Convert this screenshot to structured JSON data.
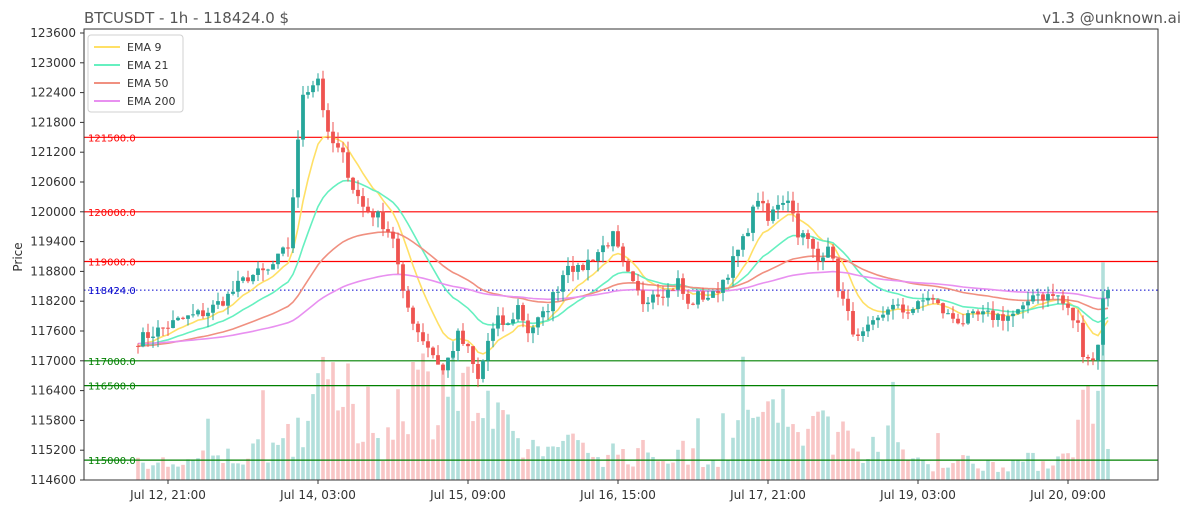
{
  "header": {
    "title": "BTCUSDT - 1h - 118424.0 $",
    "watermark": "v1.3 @unknown.ai"
  },
  "chart_data": {
    "type": "candlestick",
    "symbol": "BTCUSDT",
    "interval": "1h",
    "last_price": 118424.0,
    "ylabel": "Price",
    "ylim": [
      114600,
      123800
    ],
    "y_ticks": [
      {
        "value": 123600,
        "label": "123600"
      },
      {
        "value": 123000,
        "label": "123000"
      },
      {
        "value": 122400,
        "label": "122400"
      },
      {
        "value": 121800,
        "label": "121800"
      },
      {
        "value": 121200,
        "label": "121200"
      },
      {
        "value": 120600,
        "label": "120600"
      },
      {
        "value": 120000,
        "label": "120000"
      },
      {
        "value": 119400,
        "label": "119400"
      },
      {
        "value": 118800,
        "label": "118800"
      },
      {
        "value": 118200,
        "label": "118200"
      },
      {
        "value": 117600,
        "label": "117600"
      },
      {
        "value": 117000,
        "label": "117000"
      },
      {
        "value": 116400,
        "label": "116400"
      },
      {
        "value": 115800,
        "label": "115800"
      },
      {
        "value": 115200,
        "label": "115200"
      },
      {
        "value": 114600,
        "label": "114600"
      }
    ],
    "x_ticks": [
      {
        "index": 6,
        "label": "Jul 12, 21:00"
      },
      {
        "index": 36,
        "label": "Jul 14, 03:00"
      },
      {
        "index": 66,
        "label": "Jul 15, 09:00"
      },
      {
        "index": 96,
        "label": "Jul 16, 15:00"
      },
      {
        "index": 126,
        "label": "Jul 17, 21:00"
      },
      {
        "index": 156,
        "label": "Jul 19, 03:00"
      },
      {
        "index": 186,
        "label": "Jul 20, 09:00"
      }
    ],
    "levels": [
      {
        "value": 121500,
        "label": "121500.0",
        "color": "#ff0000",
        "style": "solid"
      },
      {
        "value": 120000,
        "label": "120000.0",
        "color": "#ff0000",
        "style": "solid"
      },
      {
        "value": 119000,
        "label": "119000.0",
        "color": "#ff0000",
        "style": "solid"
      },
      {
        "value": 118424,
        "label": "118424.0",
        "color": "#0000cc",
        "style": "dotted"
      },
      {
        "value": 117000,
        "label": "117000.0",
        "color": "#008000",
        "style": "solid"
      },
      {
        "value": 116500,
        "label": "116500.0",
        "color": "#008000",
        "style": "solid"
      },
      {
        "value": 115000,
        "label": "115000.0",
        "color": "#008000",
        "style": "solid"
      }
    ],
    "legend_position": "top-left",
    "legend": [
      {
        "name": "EMA 9",
        "color": "#ffe066",
        "period": 9
      },
      {
        "name": "EMA 21",
        "color": "#66f0c0",
        "period": 21
      },
      {
        "name": "EMA 50",
        "color": "#f09080",
        "period": 50
      },
      {
        "name": "EMA 200",
        "color": "#e890f0",
        "period": 200
      }
    ],
    "colors": {
      "up": "#26a69a",
      "down": "#ef5350",
      "vol_up": "#b2dfdb",
      "vol_down": "#f8c6c6"
    },
    "close_path": [
      [
        0,
        117420
      ],
      [
        8,
        117800
      ],
      [
        14,
        118000
      ],
      [
        18,
        118300
      ],
      [
        22,
        118700
      ],
      [
        26,
        118800
      ],
      [
        30,
        119300
      ],
      [
        33,
        122400
      ],
      [
        36,
        122700
      ],
      [
        38,
        121500
      ],
      [
        41,
        121100
      ],
      [
        43,
        120500
      ],
      [
        45,
        120100
      ],
      [
        48,
        119900
      ],
      [
        51,
        119500
      ],
      [
        53,
        118300
      ],
      [
        56,
        117600
      ],
      [
        58,
        117300
      ],
      [
        61,
        116800
      ],
      [
        64,
        117500
      ],
      [
        66,
        117200
      ],
      [
        68,
        116600
      ],
      [
        70,
        117400
      ],
      [
        72,
        117800
      ],
      [
        74,
        117700
      ],
      [
        76,
        118100
      ],
      [
        78,
        117600
      ],
      [
        81,
        117900
      ],
      [
        84,
        118500
      ],
      [
        86,
        119000
      ],
      [
        88,
        118800
      ],
      [
        92,
        119200
      ],
      [
        95,
        119500
      ],
      [
        97,
        118900
      ],
      [
        99,
        118500
      ],
      [
        101,
        118200
      ],
      [
        103,
        118400
      ],
      [
        106,
        118400
      ],
      [
        108,
        118600
      ],
      [
        110,
        118100
      ],
      [
        112,
        118300
      ],
      [
        115,
        118300
      ],
      [
        118,
        118800
      ],
      [
        121,
        119400
      ],
      [
        124,
        120300
      ],
      [
        126,
        119800
      ],
      [
        128,
        120200
      ],
      [
        130,
        120300
      ],
      [
        132,
        119600
      ],
      [
        134,
        119400
      ],
      [
        136,
        119000
      ],
      [
        138,
        119400
      ],
      [
        140,
        118500
      ],
      [
        142,
        117900
      ],
      [
        144,
        117400
      ],
      [
        146,
        117600
      ],
      [
        148,
        117800
      ],
      [
        150,
        118100
      ],
      [
        153,
        118000
      ],
      [
        156,
        118100
      ],
      [
        158,
        118300
      ],
      [
        160,
        118100
      ],
      [
        162,
        117900
      ],
      [
        165,
        117800
      ],
      [
        168,
        117900
      ],
      [
        171,
        117900
      ],
      [
        174,
        117900
      ],
      [
        177,
        118000
      ],
      [
        179,
        118400
      ],
      [
        181,
        118300
      ],
      [
        184,
        118300
      ],
      [
        186,
        118000
      ],
      [
        188,
        117700
      ],
      [
        189,
        117200
      ],
      [
        190,
        117100
      ],
      [
        191,
        117000
      ],
      [
        192,
        117400
      ],
      [
        193,
        118200
      ],
      [
        194,
        118424
      ]
    ],
    "volume_path": [
      [
        0,
        50
      ],
      [
        10,
        60
      ],
      [
        20,
        80
      ],
      [
        28,
        120
      ],
      [
        33,
        200
      ],
      [
        36,
        260
      ],
      [
        40,
        280
      ],
      [
        43,
        240
      ],
      [
        47,
        150
      ],
      [
        50,
        130
      ],
      [
        53,
        330
      ],
      [
        56,
        310
      ],
      [
        59,
        300
      ],
      [
        62,
        400
      ],
      [
        65,
        280
      ],
      [
        68,
        250
      ],
      [
        72,
        170
      ],
      [
        76,
        120
      ],
      [
        80,
        100
      ],
      [
        85,
        110
      ],
      [
        90,
        100
      ],
      [
        95,
        90
      ],
      [
        100,
        90
      ],
      [
        105,
        80
      ],
      [
        110,
        90
      ],
      [
        115,
        80
      ],
      [
        118,
        110
      ],
      [
        121,
        150
      ],
      [
        124,
        280
      ],
      [
        127,
        200
      ],
      [
        130,
        150
      ],
      [
        133,
        110
      ],
      [
        136,
        260
      ],
      [
        140,
        150
      ],
      [
        144,
        110
      ],
      [
        148,
        140
      ],
      [
        150,
        120
      ],
      [
        155,
        70
      ],
      [
        160,
        60
      ],
      [
        165,
        60
      ],
      [
        170,
        55
      ],
      [
        175,
        60
      ],
      [
        180,
        60
      ],
      [
        184,
        70
      ],
      [
        186,
        140
      ],
      [
        188,
        160
      ],
      [
        190,
        280
      ],
      [
        192,
        350
      ],
      [
        194,
        210
      ]
    ],
    "volume_max": 1000
  }
}
